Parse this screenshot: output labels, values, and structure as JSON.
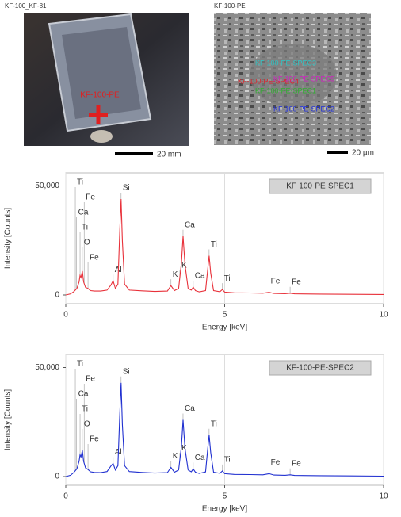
{
  "images": [
    {
      "title": "KF-100_KF-81",
      "annotation": "KF-100-PE",
      "scale_label": "20 mm"
    },
    {
      "title": "KF-100-PE",
      "scale_label": "20 µm",
      "spots": [
        {
          "label": "KF-100-PE-SPEC3",
          "color": "#2ec4c4"
        },
        {
          "label": "KF-100-PE-SPEC4",
          "color": "#e0202a"
        },
        {
          "label": "KF-100-PE-SPEC5",
          "color": "#d020c0"
        },
        {
          "label": "KF-100-PE-SPEC1",
          "color": "#30b030"
        },
        {
          "label": "KF-100-PE-SPEC2",
          "color": "#2030e0"
        }
      ]
    }
  ],
  "chart_data": [
    {
      "type": "line",
      "x_label": "Energy [keV]",
      "y_label": "Intensity [Counts]",
      "x": [
        0,
        0.15,
        0.25,
        0.35,
        0.42,
        0.45,
        0.48,
        0.52,
        0.56,
        0.62,
        0.7,
        0.78,
        0.9,
        1.1,
        1.3,
        1.42,
        1.49,
        1.56,
        1.64,
        1.7,
        1.74,
        1.78,
        1.85,
        2.0,
        2.4,
        2.8,
        3.2,
        3.31,
        3.42,
        3.55,
        3.64,
        3.69,
        3.75,
        3.85,
        3.95,
        4.01,
        4.08,
        4.2,
        4.4,
        4.47,
        4.51,
        4.56,
        4.65,
        4.85,
        4.93,
        5.0,
        5.3,
        5.8,
        6.2,
        6.4,
        6.55,
        6.9,
        7.06,
        7.2,
        8,
        9,
        10
      ],
      "series": [
        {
          "name": "KF-100-PE-SPEC1",
          "color": "#e8313a",
          "values": [
            0,
            500,
            1500,
            3000,
            6000,
            9000,
            8000,
            11000,
            6000,
            3500,
            3000,
            2000,
            1800,
            1800,
            2200,
            4500,
            6500,
            3000,
            5000,
            30000,
            44000,
            25000,
            5000,
            2200,
            1900,
            1600,
            1800,
            4300,
            2000,
            3000,
            15000,
            27000,
            14000,
            3000,
            2200,
            3600,
            2000,
            1400,
            2000,
            12000,
            18000,
            10000,
            2000,
            1500,
            2500,
            1300,
            1000,
            900,
            800,
            1200,
            700,
            600,
            800,
            500,
            400,
            300,
            200
          ]
        }
      ],
      "annotations": [
        {
          "text": "Ti",
          "x": 0.3
        },
        {
          "text": "Fe",
          "x": 0.58
        },
        {
          "text": "Ca",
          "x": 0.34
        },
        {
          "text": "Ti",
          "x": 0.45
        },
        {
          "text": "O",
          "x": 0.52
        },
        {
          "text": "Fe",
          "x": 0.7
        },
        {
          "text": "Al",
          "x": 1.49
        },
        {
          "text": "Si",
          "x": 1.74
        },
        {
          "text": "K",
          "x": 3.31
        },
        {
          "text": "Ca",
          "x": 3.69
        },
        {
          "text": "K",
          "x": 3.59
        },
        {
          "text": "Ca",
          "x": 4.01
        },
        {
          "text": "Ti",
          "x": 4.51
        },
        {
          "text": "Ti",
          "x": 4.93
        },
        {
          "text": "Fe",
          "x": 6.4
        },
        {
          "text": "Fe",
          "x": 7.06
        }
      ],
      "xlim": [
        0,
        10
      ],
      "xticks": [
        0,
        5,
        10
      ],
      "ylim": [
        -4000,
        56000
      ],
      "yticks": [
        0,
        {
          "value": 50000,
          "label": "50,000"
        }
      ],
      "grid": true
    },
    {
      "type": "line",
      "x_label": "Energy [keV]",
      "y_label": "Intensity [Counts]",
      "x": [
        0,
        0.15,
        0.25,
        0.35,
        0.42,
        0.45,
        0.48,
        0.52,
        0.56,
        0.62,
        0.7,
        0.78,
        0.9,
        1.1,
        1.3,
        1.42,
        1.49,
        1.56,
        1.64,
        1.7,
        1.74,
        1.78,
        1.85,
        2.0,
        2.4,
        2.8,
        3.2,
        3.31,
        3.42,
        3.55,
        3.64,
        3.69,
        3.75,
        3.85,
        3.95,
        4.01,
        4.08,
        4.2,
        4.4,
        4.47,
        4.51,
        4.56,
        4.65,
        4.85,
        4.93,
        5.0,
        5.3,
        5.8,
        6.2,
        6.4,
        6.55,
        6.9,
        7.06,
        7.2,
        8,
        9,
        10
      ],
      "series": [
        {
          "name": "KF-100-PE-SPEC2",
          "color": "#2030d0",
          "values": [
            0,
            600,
            1800,
            3500,
            7000,
            10000,
            9000,
            12000,
            7000,
            4000,
            3200,
            2200,
            1900,
            1800,
            2300,
            4800,
            6000,
            3000,
            5000,
            29000,
            43000,
            24000,
            5000,
            2300,
            1900,
            1600,
            1800,
            4200,
            2000,
            3000,
            14000,
            26000,
            13000,
            3000,
            2200,
            3500,
            2000,
            1400,
            2100,
            13000,
            19000,
            11000,
            2000,
            1500,
            2600,
            1300,
            1000,
            900,
            800,
            1300,
            700,
            600,
            800,
            500,
            400,
            300,
            200
          ]
        }
      ],
      "annotations": [
        {
          "text": "Ti",
          "x": 0.3
        },
        {
          "text": "Fe",
          "x": 0.58
        },
        {
          "text": "Ca",
          "x": 0.34
        },
        {
          "text": "Ti",
          "x": 0.45
        },
        {
          "text": "O",
          "x": 0.52
        },
        {
          "text": "Fe",
          "x": 0.7
        },
        {
          "text": "Al",
          "x": 1.49
        },
        {
          "text": "Si",
          "x": 1.74
        },
        {
          "text": "K",
          "x": 3.31
        },
        {
          "text": "Ca",
          "x": 3.69
        },
        {
          "text": "K",
          "x": 3.59
        },
        {
          "text": "Ca",
          "x": 4.01
        },
        {
          "text": "Ti",
          "x": 4.51
        },
        {
          "text": "Ti",
          "x": 4.93
        },
        {
          "text": "Fe",
          "x": 6.4
        },
        {
          "text": "Fe",
          "x": 7.06
        }
      ],
      "xlim": [
        0,
        10
      ],
      "xticks": [
        0,
        5,
        10
      ],
      "ylim": [
        -4000,
        56000
      ],
      "yticks": [
        0,
        {
          "value": 50000,
          "label": "50,000"
        }
      ],
      "grid": true
    }
  ]
}
